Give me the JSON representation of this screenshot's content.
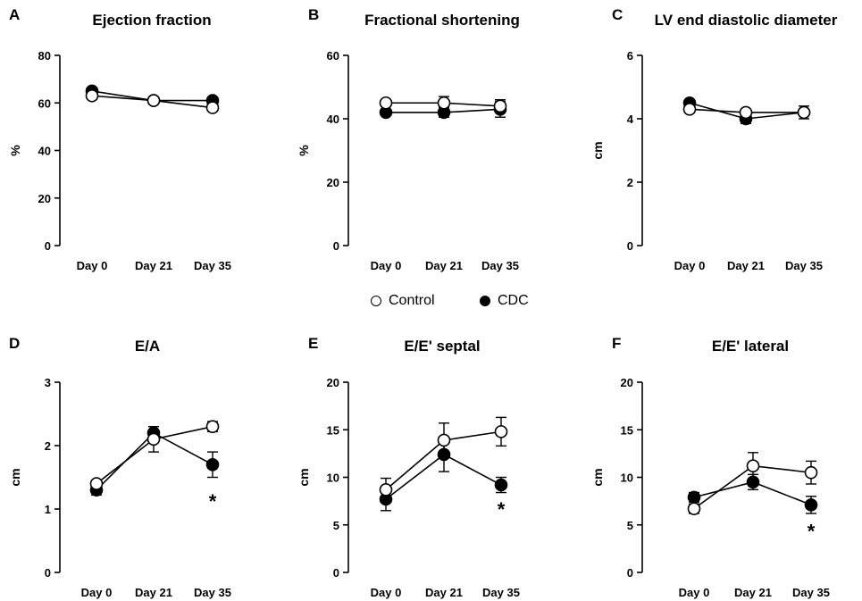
{
  "legend": {
    "control_label": "Control",
    "cdc_label": "CDC"
  },
  "colors": {
    "control_marker_fill": "#ffffff",
    "cdc_marker_fill": "#000000",
    "stroke": "#000000"
  },
  "chart_data": [
    {
      "panel": "A",
      "type": "line",
      "title": "Ejection  fraction",
      "xlabel": "",
      "ylabel": "%",
      "categories": [
        "Day 0",
        "Day 21",
        "Day 35"
      ],
      "ylim": [
        0,
        80
      ],
      "yticks": [
        "0",
        "20",
        "40",
        "60",
        "80"
      ],
      "series": [
        {
          "name": "Control",
          "values": [
            63,
            61,
            58
          ],
          "errors": [
            1,
            1,
            1
          ]
        },
        {
          "name": "CDC",
          "values": [
            65,
            61,
            61
          ],
          "errors": [
            1,
            1,
            1
          ]
        }
      ],
      "annotations": []
    },
    {
      "panel": "B",
      "type": "line",
      "title": "Fractional shortening",
      "xlabel": "",
      "ylabel": "%",
      "categories": [
        "Day 0",
        "Day 21",
        "Day 35"
      ],
      "ylim": [
        0,
        60
      ],
      "yticks": [
        "0",
        "20",
        "40",
        "60"
      ],
      "series": [
        {
          "name": "Control",
          "values": [
            45,
            45,
            44
          ],
          "errors": [
            1,
            2,
            2
          ]
        },
        {
          "name": "CDC",
          "values": [
            42,
            42,
            43
          ],
          "errors": [
            1,
            1.5,
            2.5
          ]
        }
      ],
      "annotations": []
    },
    {
      "panel": "C",
      "type": "line",
      "title": "LV end diastolic diameter",
      "xlabel": "",
      "ylabel": "cm",
      "categories": [
        "Day 0",
        "Day 21",
        "Day 35"
      ],
      "ylim": [
        0,
        6
      ],
      "yticks": [
        "0",
        "2",
        "4",
        "6"
      ],
      "series": [
        {
          "name": "Control",
          "values": [
            4.3,
            4.2,
            4.2
          ],
          "errors": [
            0.1,
            0.1,
            0.2
          ]
        },
        {
          "name": "CDC",
          "values": [
            4.5,
            4.0,
            4.2
          ],
          "errors": [
            0.1,
            0.15,
            0.1
          ]
        }
      ],
      "annotations": []
    },
    {
      "panel": "D",
      "type": "line",
      "title": "E/A",
      "xlabel": "",
      "ylabel": "cm",
      "categories": [
        "Day 0",
        "Day 21",
        "Day 35"
      ],
      "ylim": [
        0,
        3
      ],
      "yticks": [
        "0",
        "1",
        "2",
        "3"
      ],
      "series": [
        {
          "name": "Control",
          "values": [
            1.4,
            2.1,
            2.3
          ],
          "errors": [
            0.05,
            0.2,
            0.08
          ]
        },
        {
          "name": "CDC",
          "values": [
            1.3,
            2.2,
            1.7
          ],
          "errors": [
            0.08,
            0.05,
            0.2
          ]
        }
      ],
      "annotations": [
        {
          "text": "*",
          "category": "Day 35",
          "y": 1.1
        }
      ]
    },
    {
      "panel": "E",
      "type": "line",
      "title": "E/E' septal",
      "xlabel": "",
      "ylabel": "cm",
      "categories": [
        "Day 0",
        "Day 21",
        "Day 35"
      ],
      "ylim": [
        0,
        20
      ],
      "yticks": [
        "0",
        "5",
        "10",
        "15",
        "20"
      ],
      "series": [
        {
          "name": "Control",
          "values": [
            8.7,
            13.9,
            14.8
          ],
          "errors": [
            1.2,
            1.8,
            1.5
          ]
        },
        {
          "name": "CDC",
          "values": [
            7.7,
            12.4,
            9.2
          ],
          "errors": [
            1.2,
            1.8,
            0.8
          ]
        }
      ],
      "annotations": [
        {
          "text": "*",
          "category": "Day 35",
          "y": 6.5
        }
      ]
    },
    {
      "panel": "F",
      "type": "line",
      "title": "E/E' lateral",
      "xlabel": "",
      "ylabel": "cm",
      "categories": [
        "Day 0",
        "Day 21",
        "Day 35"
      ],
      "ylim": [
        0,
        20
      ],
      "yticks": [
        "0",
        "5",
        "10",
        "15",
        "20"
      ],
      "series": [
        {
          "name": "Control",
          "values": [
            6.7,
            11.2,
            10.5
          ],
          "errors": [
            0.5,
            1.4,
            1.2
          ]
        },
        {
          "name": "CDC",
          "values": [
            7.9,
            9.5,
            7.1
          ],
          "errors": [
            0.5,
            0.8,
            0.9
          ]
        }
      ],
      "annotations": [
        {
          "text": "*",
          "category": "Day 35",
          "y": 4.2
        }
      ]
    }
  ]
}
